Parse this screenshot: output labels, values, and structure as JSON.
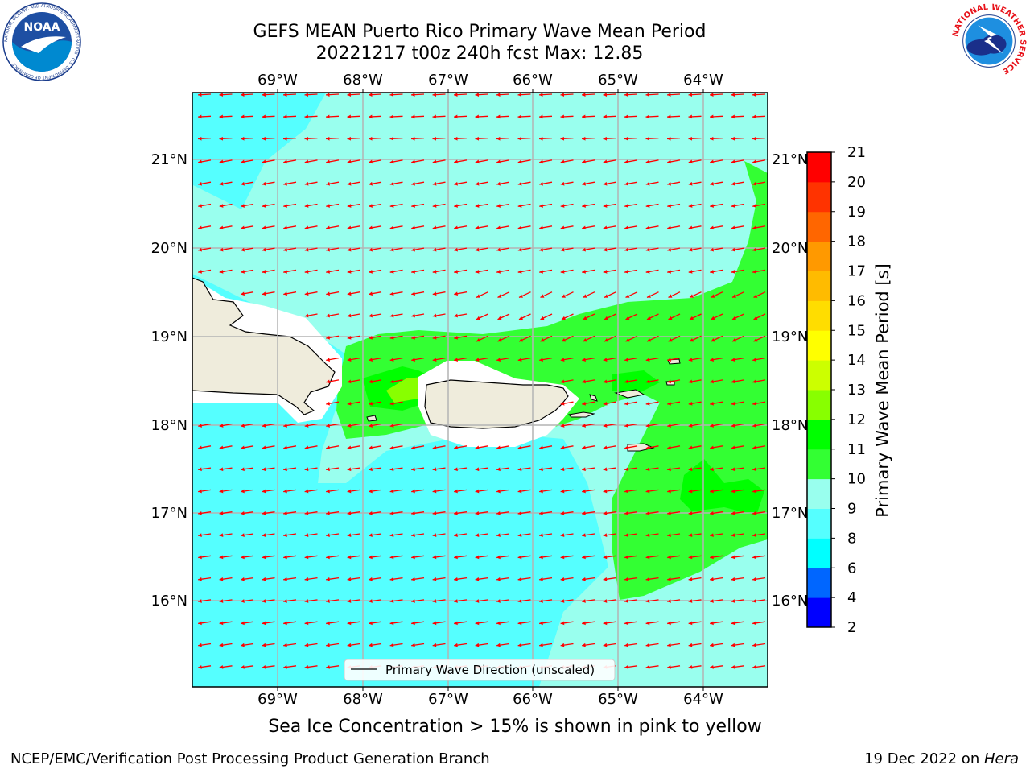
{
  "header": {
    "title_line1": "GEFS MEAN Puerto Rico Primary Wave Mean Period",
    "title_line2": "20221217 t00z 240h fcst   Max: 12.85"
  },
  "logos": {
    "left": {
      "icon": "noaa-logo-icon",
      "text": "NOAA",
      "ring_text": "NATIONAL OCEANIC AND ATMOSPHERIC ADMINISTRATION · U.S. DEPARTMENT OF COMMERCE"
    },
    "right": {
      "icon": "nws-logo-icon",
      "ring_text": "NATIONAL WEATHER SERVICE"
    }
  },
  "map": {
    "lon_labels": [
      "69°W",
      "68°W",
      "67°W",
      "66°W",
      "65°W",
      "64°W"
    ],
    "lat_labels": [
      "21°N",
      "20°N",
      "19°N",
      "18°N",
      "17°N",
      "16°N"
    ],
    "legend_label": "Primary Wave Direction (unscaled)",
    "arrow_color": "#ff0000",
    "land_color": "#efecdc"
  },
  "colorbar": {
    "label": "Primary Wave Mean Period [s]",
    "ticks": [
      "2",
      "4",
      "6",
      "8",
      "9",
      "10",
      "11",
      "12",
      "13",
      "14",
      "15",
      "16",
      "17",
      "18",
      "19",
      "20",
      "21"
    ],
    "colors": [
      "#0000ff",
      "#0066ff",
      "#00ffff",
      "#55ffff",
      "#99ffee",
      "#33ff33",
      "#00ff00",
      "#88ff00",
      "#ccff00",
      "#ffff00",
      "#ffdd00",
      "#ffbb00",
      "#ff9900",
      "#ff6600",
      "#ff3300",
      "#ff0000"
    ]
  },
  "note": "Sea Ice Concentration > 15% is shown in pink to yellow",
  "footer": {
    "left": "NCEP/EMC/Verification Post Processing Product Generation Branch",
    "date": "19 Dec 2022 on ",
    "machine": "Hera"
  }
}
